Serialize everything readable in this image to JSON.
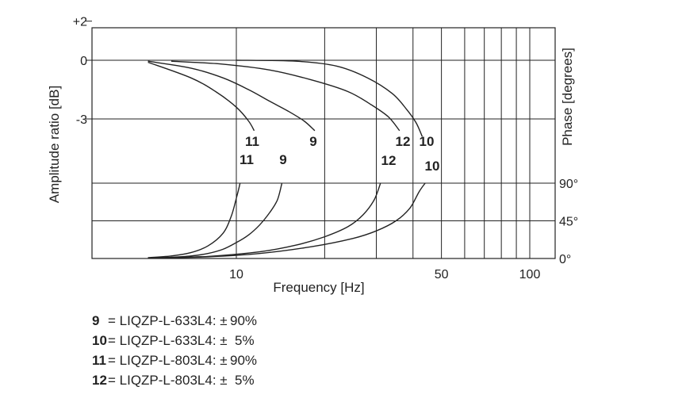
{
  "chart_data": {
    "type": "line",
    "xlabel": "Frequency [Hz]",
    "ylabel_left": "Amplitude ratio [dB]",
    "ylabel_right": "Phase [degrees]",
    "x_scale": "log",
    "xlim": [
      3,
      110
    ],
    "x_ticks": [
      {
        "value": 10,
        "label": "10"
      },
      {
        "value": 50,
        "label": "50"
      },
      {
        "value": 100,
        "label": "100"
      }
    ],
    "x_gridlines": [
      10,
      20,
      30,
      40,
      50,
      60,
      70,
      80,
      90,
      100
    ],
    "amplitude_axis": {
      "range_db": [
        -3,
        2
      ],
      "ticks": [
        {
          "value": 2,
          "label": "+2"
        },
        {
          "value": 0,
          "label": "0"
        },
        {
          "value": -3,
          "label": "-3"
        }
      ]
    },
    "phase_axis": {
      "range_deg": [
        0,
        90
      ],
      "ticks": [
        {
          "value": 90,
          "label": "90°"
        },
        {
          "value": 45,
          "label": "45°"
        },
        {
          "value": 0,
          "label": "0°"
        }
      ]
    },
    "grid": true,
    "series": [
      {
        "id": "9",
        "name": "LIQZP-L-633L4: ±90%",
        "amplitude_label": "9",
        "phase_label": "9",
        "amplitude": [
          [
            3,
            0
          ],
          [
            5,
            -0.05
          ],
          [
            7,
            -0.4
          ],
          [
            9,
            -0.9
          ],
          [
            11,
            -1.5
          ],
          [
            13,
            -2.1
          ],
          [
            15,
            -2.6
          ],
          [
            17,
            -3.1
          ],
          [
            18.5,
            -3.6
          ]
        ],
        "phase": [
          [
            3,
            0
          ],
          [
            5,
            0.5
          ],
          [
            6,
            1.5
          ],
          [
            7,
            3
          ],
          [
            8,
            6
          ],
          [
            9,
            11
          ],
          [
            10,
            19
          ],
          [
            11,
            28
          ],
          [
            12,
            40
          ],
          [
            13,
            55
          ],
          [
            13.8,
            70
          ],
          [
            14.3,
            90
          ]
        ]
      },
      {
        "id": "10",
        "name": "LIQZP-L-633L4: ± 5%",
        "amplitude_label": "10",
        "phase_label": "10",
        "amplitude": [
          [
            3,
            0
          ],
          [
            10,
            0
          ],
          [
            16,
            -0.05
          ],
          [
            22,
            -0.3
          ],
          [
            28,
            -0.9
          ],
          [
            34,
            -1.7
          ],
          [
            38,
            -2.5
          ],
          [
            41,
            -3.2
          ],
          [
            43,
            -3.9
          ]
        ],
        "phase": [
          [
            3,
            0
          ],
          [
            5,
            0.5
          ],
          [
            8,
            2
          ],
          [
            12,
            6
          ],
          [
            18,
            14
          ],
          [
            25,
            24
          ],
          [
            30,
            33
          ],
          [
            35,
            45
          ],
          [
            39,
            60
          ],
          [
            42,
            80
          ],
          [
            44,
            90
          ]
        ]
      },
      {
        "id": "11",
        "name": "LIQZP-L-803L4: ±90%",
        "amplitude_label": "11",
        "phase_label": "11",
        "amplitude": [
          [
            3,
            0
          ],
          [
            5,
            -0.1
          ],
          [
            7,
            -0.9
          ],
          [
            8.5,
            -1.6
          ],
          [
            10,
            -2.4
          ],
          [
            11,
            -3.1
          ],
          [
            11.5,
            -3.6
          ]
        ],
        "phase": [
          [
            3,
            0
          ],
          [
            5,
            1
          ],
          [
            6,
            3
          ],
          [
            7,
            7
          ],
          [
            8,
            15
          ],
          [
            9,
            30
          ],
          [
            9.6,
            50
          ],
          [
            10,
            72
          ],
          [
            10.3,
            90
          ]
        ]
      },
      {
        "id": "12",
        "name": "LIQZP-L-803L4: ± 5%",
        "amplitude_label": "12",
        "phase_label": "12",
        "amplitude": [
          [
            3,
            0
          ],
          [
            6,
            -0.05
          ],
          [
            9,
            -0.2
          ],
          [
            13,
            -0.5
          ],
          [
            18,
            -1.0
          ],
          [
            24,
            -1.6
          ],
          [
            29,
            -2.3
          ],
          [
            33,
            -2.9
          ],
          [
            36,
            -3.6
          ]
        ],
        "phase": [
          [
            3,
            0
          ],
          [
            5,
            0.5
          ],
          [
            8,
            2.5
          ],
          [
            12,
            8
          ],
          [
            16,
            16
          ],
          [
            20,
            26
          ],
          [
            24,
            38
          ],
          [
            27,
            52
          ],
          [
            29.5,
            70
          ],
          [
            31,
            90
          ]
        ]
      }
    ]
  },
  "legend": [
    {
      "number": "9",
      "text": "= LIQZP-L-633L4: ± 90%"
    },
    {
      "number": "10",
      "text": "= LIQZP-L-633L4: ±  5%"
    },
    {
      "number": "11",
      "text": "= LIQZP-L-803L4: ± 90%"
    },
    {
      "number": "12",
      "text": "= LIQZP-L-803L4: ±  5%"
    }
  ]
}
